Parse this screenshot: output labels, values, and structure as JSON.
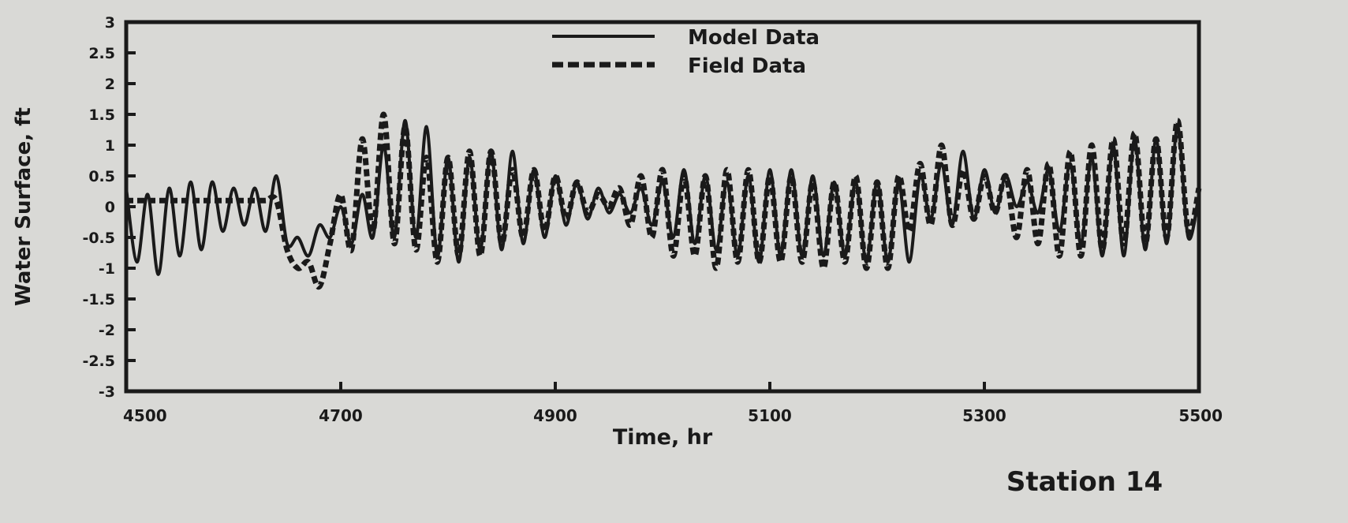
{
  "chart_data": {
    "type": "line",
    "title": "",
    "xlabel": "Time, hr",
    "ylabel": "Water Surface, ft",
    "xlim": [
      4500,
      5500
    ],
    "ylim": [
      -3,
      3
    ],
    "x_ticks": [
      "4500",
      "4700",
      "4900",
      "5100",
      "5300",
      "5500"
    ],
    "x_tick_values": [
      4500,
      4700,
      4900,
      5100,
      5300,
      5500
    ],
    "y_ticks": [
      "3",
      "2.5",
      "2",
      "1.5",
      "1",
      "0.5",
      "0",
      "-0.5",
      "-1",
      "-1.5",
      "-2",
      "-2.5",
      "-3"
    ],
    "y_tick_values": [
      3,
      2.5,
      2,
      1.5,
      1,
      0.5,
      0,
      -0.5,
      -1,
      -1.5,
      -2,
      -2.5,
      -3
    ],
    "grid": false,
    "legend_position": "top-center",
    "series": [
      {
        "name": "Model Data",
        "style": "solid",
        "x": [
          4500,
          4510,
          4520,
          4530,
          4540,
          4550,
          4560,
          4570,
          4580,
          4590,
          4600,
          4610,
          4620,
          4630,
          4640,
          4650,
          4660,
          4670,
          4680,
          4690,
          4700,
          4710,
          4720,
          4730,
          4740,
          4750,
          4760,
          4770,
          4780,
          4790,
          4800,
          4810,
          4820,
          4830,
          4840,
          4850,
          4860,
          4870,
          4880,
          4890,
          4900,
          4910,
          4920,
          4930,
          4940,
          4950,
          4960,
          4970,
          4980,
          4990,
          5000,
          5010,
          5020,
          5030,
          5040,
          5050,
          5060,
          5070,
          5080,
          5090,
          5100,
          5110,
          5120,
          5130,
          5140,
          5150,
          5160,
          5170,
          5180,
          5190,
          5200,
          5210,
          5220,
          5230,
          5240,
          5250,
          5260,
          5270,
          5280,
          5290,
          5300,
          5310,
          5320,
          5330,
          5340,
          5350,
          5360,
          5370,
          5380,
          5390,
          5400,
          5410,
          5420,
          5430,
          5440,
          5450,
          5460,
          5470,
          5480,
          5490,
          5500
        ],
        "values": [
          0.3,
          -0.9,
          0.2,
          -1.1,
          0.3,
          -0.8,
          0.4,
          -0.7,
          0.4,
          -0.4,
          0.3,
          -0.3,
          0.3,
          -0.4,
          0.5,
          -0.6,
          -0.5,
          -0.8,
          -0.3,
          -0.5,
          0.0,
          -0.6,
          0.2,
          -0.5,
          1.0,
          -0.5,
          1.4,
          -0.5,
          1.3,
          -0.8,
          0.8,
          -0.9,
          0.8,
          -0.7,
          0.9,
          -0.7,
          0.9,
          -0.6,
          0.6,
          -0.5,
          0.5,
          -0.3,
          0.4,
          -0.2,
          0.3,
          -0.1,
          0.2,
          -0.1,
          0.3,
          -0.3,
          0.4,
          -0.5,
          0.6,
          -0.6,
          0.5,
          -0.7,
          0.4,
          -0.8,
          0.5,
          -0.9,
          0.6,
          -0.8,
          0.6,
          -0.8,
          0.5,
          -0.8,
          0.4,
          -0.8,
          0.4,
          -0.9,
          0.4,
          -0.9,
          0.4,
          -0.9,
          0.5,
          -0.2,
          0.7,
          -0.3,
          0.9,
          -0.2,
          0.6,
          -0.1,
          0.5,
          0.0,
          0.4,
          -0.1,
          0.6,
          -0.4,
          0.7,
          -0.6,
          0.8,
          -0.8,
          1.0,
          -0.8,
          1.1,
          -0.7,
          1.1,
          -0.6,
          1.3,
          -0.5,
          0.2
        ]
      },
      {
        "name": "Field Data",
        "style": "dashed",
        "x": [
          4500,
          4510,
          4520,
          4530,
          4540,
          4550,
          4560,
          4570,
          4580,
          4590,
          4600,
          4610,
          4620,
          4630,
          4640,
          4650,
          4660,
          4670,
          4680,
          4690,
          4700,
          4710,
          4720,
          4730,
          4740,
          4750,
          4760,
          4770,
          4780,
          4790,
          4800,
          4810,
          4820,
          4830,
          4840,
          4850,
          4860,
          4870,
          4880,
          4890,
          4900,
          4910,
          4920,
          4930,
          4940,
          4950,
          4960,
          4970,
          4980,
          4990,
          5000,
          5010,
          5020,
          5030,
          5040,
          5050,
          5060,
          5070,
          5080,
          5090,
          5100,
          5110,
          5120,
          5130,
          5140,
          5150,
          5160,
          5170,
          5180,
          5190,
          5200,
          5210,
          5220,
          5230,
          5240,
          5250,
          5260,
          5270,
          5280,
          5290,
          5300,
          5310,
          5320,
          5330,
          5340,
          5350,
          5360,
          5370,
          5380,
          5390,
          5400,
          5410,
          5420,
          5430,
          5440,
          5450,
          5460,
          5470,
          5480,
          5490,
          5500
        ],
        "values": [
          0.1,
          0.1,
          0.1,
          0.1,
          0.1,
          0.1,
          0.1,
          0.1,
          0.1,
          0.1,
          0.1,
          0.1,
          0.1,
          0.1,
          0.1,
          -0.7,
          -1.0,
          -0.9,
          -1.3,
          -0.6,
          0.2,
          -0.7,
          1.1,
          -0.4,
          1.5,
          -0.6,
          1.3,
          -0.7,
          0.8,
          -0.9,
          0.8,
          -0.8,
          0.9,
          -0.8,
          0.9,
          -0.6,
          0.6,
          -0.5,
          0.6,
          -0.4,
          0.5,
          -0.2,
          0.4,
          -0.1,
          0.2,
          0.0,
          0.3,
          -0.3,
          0.5,
          -0.5,
          0.6,
          -0.8,
          0.5,
          -0.8,
          0.5,
          -1.0,
          0.6,
          -0.9,
          0.6,
          -0.9,
          0.5,
          -0.9,
          0.5,
          -0.9,
          0.4,
          -1.0,
          0.4,
          -0.9,
          0.5,
          -1.0,
          0.4,
          -1.0,
          0.5,
          -0.4,
          0.7,
          -0.3,
          1.0,
          -0.3,
          0.6,
          -0.2,
          0.5,
          -0.1,
          0.5,
          -0.5,
          0.6,
          -0.6,
          0.7,
          -0.8,
          0.9,
          -0.8,
          1.0,
          -0.7,
          1.1,
          -0.6,
          1.2,
          -0.6,
          1.1,
          -0.5,
          1.4,
          -0.4,
          0.3
        ]
      }
    ],
    "annotations": [
      "Station 14"
    ],
    "colors": {
      "background": "#d9d9d6",
      "ink": "#1a1a1a"
    }
  }
}
